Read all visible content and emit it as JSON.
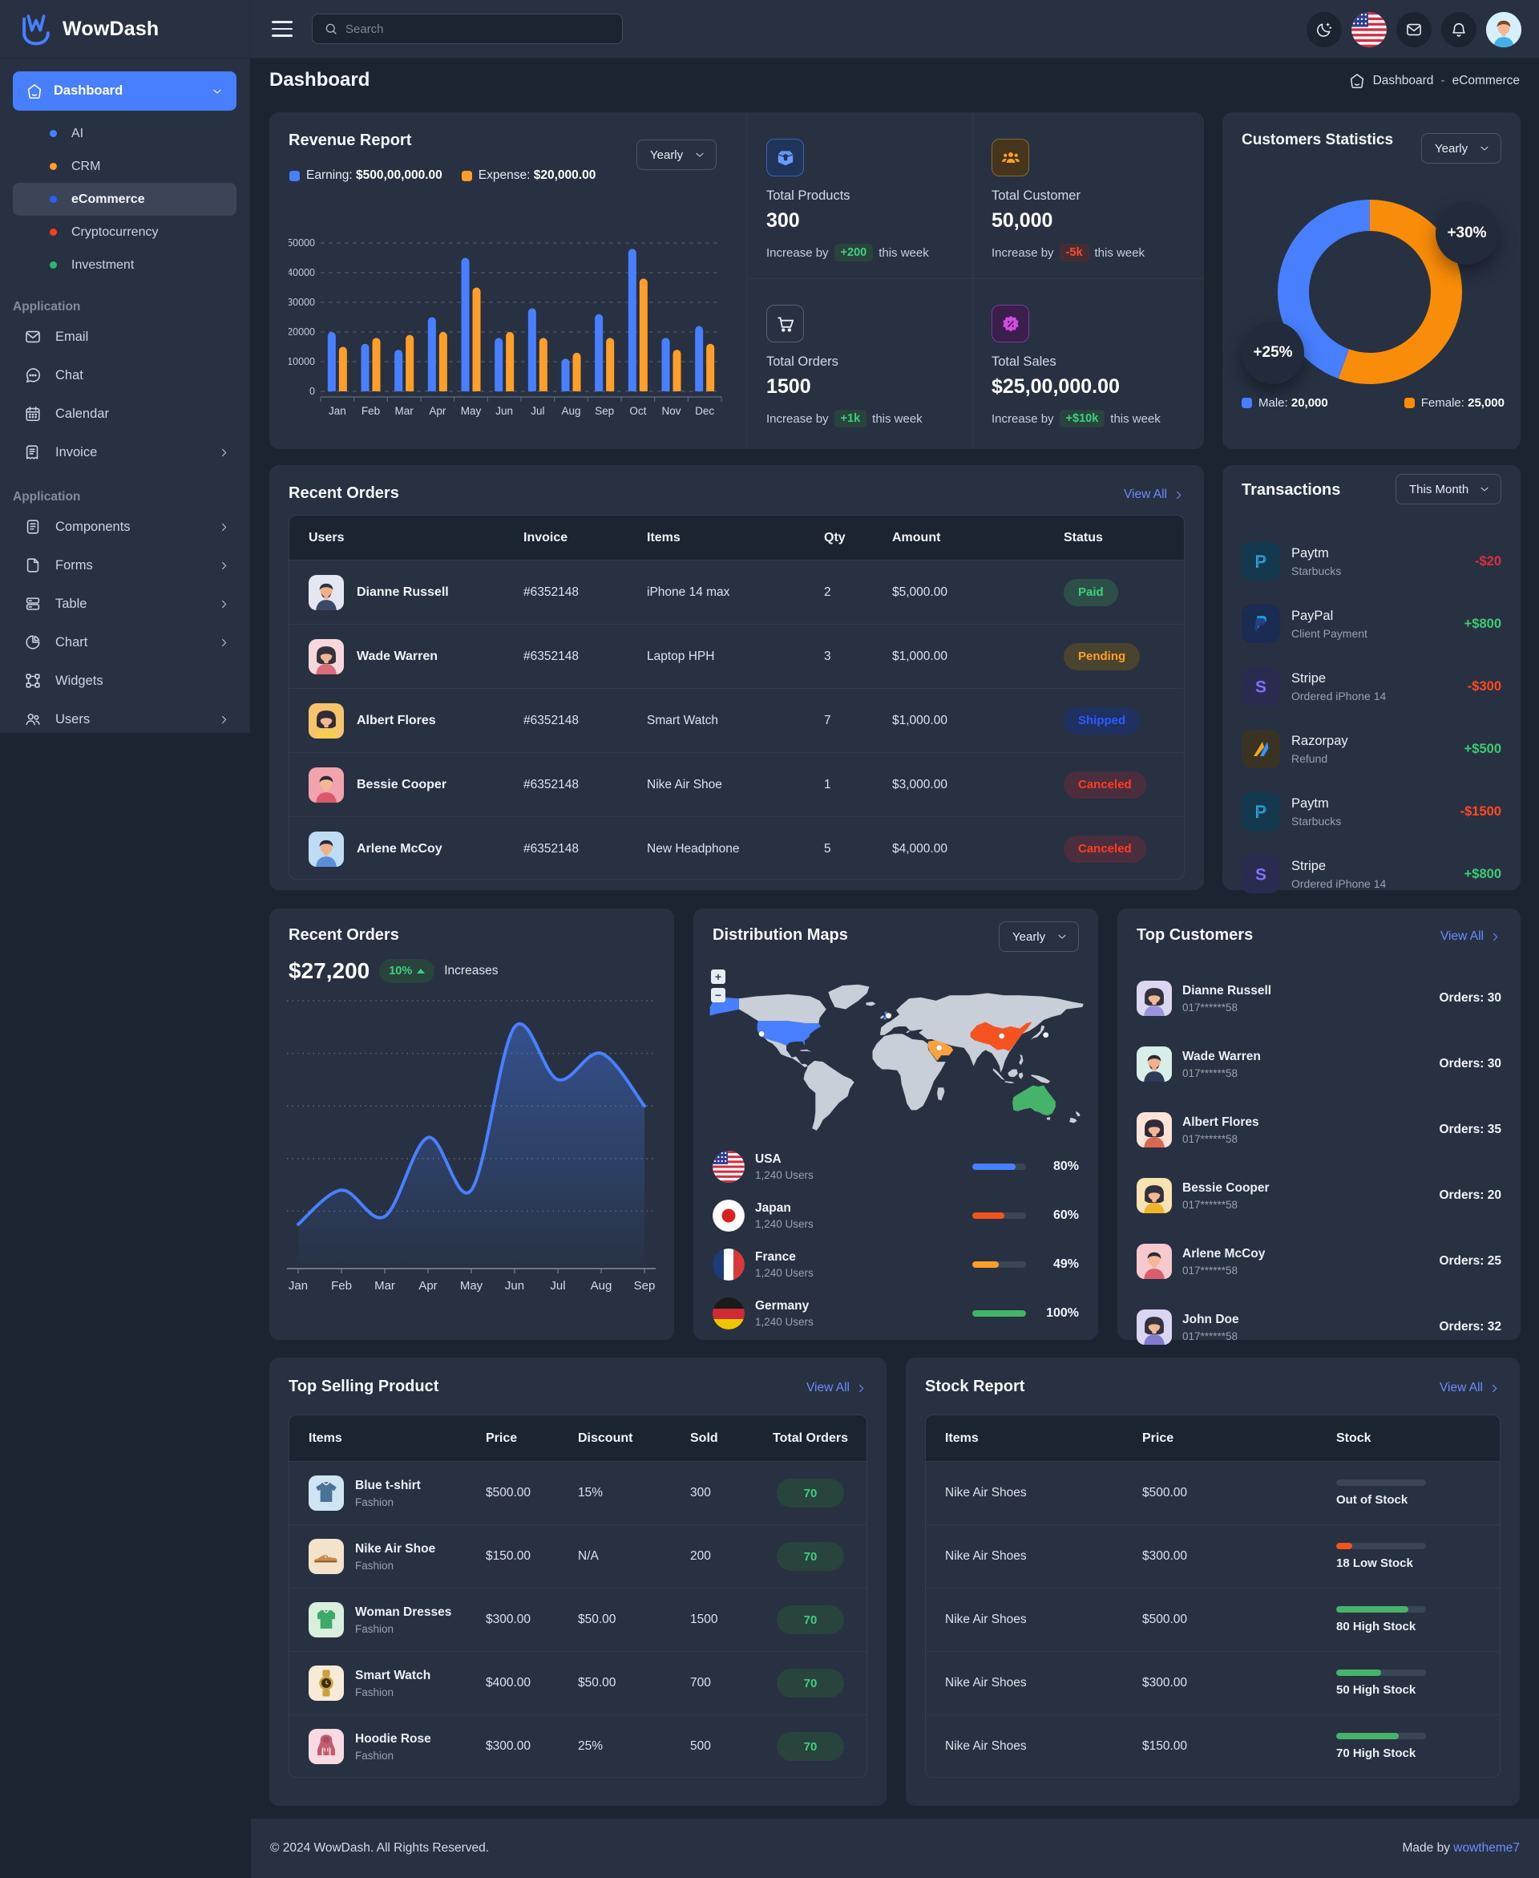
{
  "brand": {
    "name": "WowDash"
  },
  "topbar": {
    "search_placeholder": "Search",
    "icons": {
      "menu": "menu-icon",
      "search": "search-icon",
      "moon": "moon-icon",
      "flag": "us-flag-icon",
      "mail": "mail-icon",
      "bell": "bell-icon"
    },
    "user_avatar": {
      "bg": "#D6EFFC",
      "skin": "#F2B896",
      "hair": "#7A4526",
      "shirt": "#45AEE8",
      "style": "short"
    }
  },
  "sidebar": {
    "dashboard": {
      "label": "Dashboard",
      "icon": "home-icon"
    },
    "dashboard_children": [
      {
        "label": "AI",
        "dot": "#487FFF",
        "active": false
      },
      {
        "label": "CRM",
        "dot": "#FF9F29",
        "active": false
      },
      {
        "label": "eCommerce",
        "dot": "#2E5BFF",
        "active": true
      },
      {
        "label": "Cryptocurrency",
        "dot": "#FF3D1F",
        "active": false
      },
      {
        "label": "Investment",
        "dot": "#2BB673",
        "active": false
      }
    ],
    "section1": {
      "title": "Application",
      "items": [
        {
          "label": "Email",
          "icon": "mail-icon",
          "chevron": false
        },
        {
          "label": "Chat",
          "icon": "chat-icon",
          "chevron": false
        },
        {
          "label": "Calendar",
          "icon": "calendar-icon",
          "chevron": false
        },
        {
          "label": "Invoice",
          "icon": "invoice-icon",
          "chevron": true
        }
      ]
    },
    "section2": {
      "title": "Application",
      "items": [
        {
          "label": "Components",
          "icon": "components-icon",
          "chevron": true
        },
        {
          "label": "Forms",
          "icon": "forms-icon",
          "chevron": true
        },
        {
          "label": "Table",
          "icon": "table-icon",
          "chevron": true
        },
        {
          "label": "Chart",
          "icon": "chart-icon",
          "chevron": true
        },
        {
          "label": "Widgets",
          "icon": "widgets-icon",
          "chevron": false
        },
        {
          "label": "Users",
          "icon": "users-icon",
          "chevron": true
        }
      ]
    }
  },
  "page": {
    "title": "Dashboard",
    "breadcrumb": {
      "home_icon": "home-icon",
      "root": "Dashboard",
      "sep": "-",
      "current": "eCommerce"
    }
  },
  "revenue_report": {
    "title": "Revenue Report",
    "select_value": "Yearly",
    "legend": [
      {
        "label": "Earning:",
        "value": "$500,00,000.00",
        "color": "#487FFF"
      },
      {
        "label": "Expense:",
        "value": "$20,000.00",
        "color": "#FF9F29"
      }
    ],
    "chart_data": {
      "type": "bar",
      "categories": [
        "Jan",
        "Feb",
        "Mar",
        "Apr",
        "May",
        "Jun",
        "Jul",
        "Aug",
        "Sep",
        "Oct",
        "Nov",
        "Dec"
      ],
      "series": [
        {
          "name": "Earning",
          "color": "#487FFF",
          "values": [
            20000,
            16000,
            14000,
            25000,
            45000,
            18000,
            28000,
            11000,
            26000,
            48000,
            18000,
            22000
          ]
        },
        {
          "name": "Expense",
          "color": "#FF9F29",
          "values": [
            15000,
            18000,
            19000,
            20000,
            35000,
            20000,
            18000,
            13000,
            18000,
            38000,
            14000,
            16000
          ]
        }
      ],
      "ylim": [
        0,
        50000
      ],
      "yticks": [
        0,
        10000,
        20000,
        30000,
        40000,
        50000
      ],
      "grid": "dashed"
    }
  },
  "stats": [
    {
      "icon": "box-icon",
      "tile_bg": "#1F3458",
      "tile_border": "#3E62B9",
      "tile_fg": "#6B9BFF",
      "label": "Total Products",
      "value": "300",
      "inc_prefix": "Increase by",
      "badge": "+200",
      "badge_fg": "#3FD07F",
      "badge_bg": "#28443C",
      "inc_suffix": "this week"
    },
    {
      "icon": "group-icon",
      "tile_bg": "#46351D",
      "tile_border": "#8A6A2F",
      "tile_fg": "#FF9F29",
      "label": "Total Customer",
      "value": "50,000",
      "inc_prefix": "Increase by",
      "badge": "-5k",
      "badge_fg": "#FF4A2B",
      "badge_bg": "#462D33",
      "inc_suffix": "this week"
    },
    {
      "icon": "cart-icon",
      "tile_bg": "transparent",
      "tile_border": "#55617A",
      "tile_fg": "#E9EDF4",
      "label": "Total Orders",
      "value": "1500",
      "inc_prefix": "Increase by",
      "badge": "+1k",
      "badge_fg": "#3FD07F",
      "badge_bg": "#28443C",
      "inc_suffix": "this week"
    },
    {
      "icon": "discount-icon",
      "tile_bg": "#3A1F4C",
      "tile_border": "#7A3A96",
      "tile_fg": "#D44BE0",
      "label": "Total Sales",
      "value": "$25,00,000.00",
      "inc_prefix": "Increase by",
      "badge": "+$10k",
      "badge_fg": "#3FD07F",
      "badge_bg": "#28443C",
      "inc_suffix": "this week"
    }
  ],
  "customers_statistics": {
    "title": "Customers Statistics",
    "select_value": "Yearly",
    "bubble_top": "+30%",
    "bubble_bottom": "+25%",
    "legend": [
      {
        "label": "Male:",
        "value": "20,000",
        "color": "#487FFF"
      },
      {
        "label": "Female:",
        "value": "25,000",
        "color": "#F98C08"
      }
    ],
    "chart_data": {
      "type": "donut",
      "slices": [
        {
          "name": "Female",
          "value": 25000,
          "color": "#F98C08"
        },
        {
          "name": "Male",
          "value": 20000,
          "color": "#487FFF"
        }
      ],
      "start_angle_deg": 0,
      "direction": "clockwise"
    }
  },
  "recent_orders_table": {
    "title": "Recent Orders",
    "view_all": "View All",
    "columns": [
      "Users",
      "Invoice",
      "Items",
      "Qty",
      "Amount",
      "Status"
    ],
    "rows": [
      {
        "name": "Dianne Russell",
        "avatar": {
          "bg": "#E4E7F2",
          "skin": "#EFB08C",
          "hair": "#30333F",
          "shirt": "#3C4868",
          "style": "short",
          "beard": true
        },
        "invoice": "#6352148",
        "item": "iPhone 14 max",
        "qty": "2",
        "amount": "$5,000.00",
        "status": "Paid",
        "status_fg": "#3FD07F",
        "status_bg": "#2E4F47"
      },
      {
        "name": "Wade Warren",
        "avatar": {
          "bg": "#F6D7DC",
          "skin": "#F2B896",
          "hair": "#33323E",
          "shirt": "#DA6C7C",
          "style": "long",
          "beard": false
        },
        "invoice": "#6352148",
        "item": "Laptop HPH",
        "qty": "3",
        "amount": "$1,000.00",
        "status": "Pending",
        "status_fg": "#FF9F29",
        "status_bg": "#4A432E"
      },
      {
        "name": "Albert Flores",
        "avatar": {
          "bg": "#F7C46C",
          "skin": "#F2B896",
          "hair": "#2F2B38",
          "shirt": "#F2CE53",
          "style": "long",
          "beard": false
        },
        "invoice": "#6352148",
        "item": "Smart Watch",
        "qty": "7",
        "amount": "$1,000.00",
        "status": "Shipped",
        "status_fg": "#2E5BFF",
        "status_bg": "#1E3161"
      },
      {
        "name": "Bessie Cooper",
        "avatar": {
          "bg": "#F2A3AE",
          "skin": "#F2B896",
          "hair": "#2E2A33",
          "shirt": "#D9596B",
          "style": "short",
          "beard": false
        },
        "invoice": "#6352148",
        "item": "Nike Air Shoe",
        "qty": "1",
        "amount": "$3,000.00",
        "status": "Canceled",
        "status_fg": "#FF3D1F",
        "status_bg": "#4A2E3E"
      },
      {
        "name": "Arlene McCoy",
        "avatar": {
          "bg": "#BFDCF5",
          "skin": "#EFB08C",
          "hair": "#2E2A33",
          "shirt": "#5B8DD9",
          "style": "short",
          "beard": false
        },
        "invoice": "#6352148",
        "item": "New Headphone",
        "qty": "5",
        "amount": "$4,000.00",
        "status": "Canceled",
        "status_fg": "#FF3D1F",
        "status_bg": "#4A2E3E"
      }
    ]
  },
  "transactions": {
    "title": "Transactions",
    "select_value": "This Month",
    "items": [
      {
        "logo": "paytm",
        "tile_bg": "#14384D",
        "name": "Paytm",
        "sub": "Starbucks",
        "amount": "-$20",
        "amount_color": "#DC2F3F"
      },
      {
        "logo": "paypal",
        "tile_bg": "#1B2C52",
        "name": "PayPal",
        "sub": "Client Payment",
        "amount": "+$800",
        "amount_color": "#3FCB72"
      },
      {
        "logo": "stripe",
        "tile_bg": "#2B2A4F",
        "name": "Stripe",
        "sub": "Ordered iPhone 14",
        "amount": "-$300",
        "amount_color": "#FF4A1D"
      },
      {
        "logo": "razorpay",
        "tile_bg": "#3A3323",
        "name": "Razorpay",
        "sub": "Refund",
        "amount": "+$500",
        "amount_color": "#3FCB72"
      },
      {
        "logo": "paytm",
        "tile_bg": "#14384D",
        "name": "Paytm",
        "sub": "Starbucks",
        "amount": "-$1500",
        "amount_color": "#FF4A1D"
      },
      {
        "logo": "stripe",
        "tile_bg": "#2B2A4F",
        "name": "Stripe",
        "sub": "Ordered iPhone 14",
        "amount": "+$800",
        "amount_color": "#3FCB72"
      }
    ]
  },
  "recent_orders_chart": {
    "title": "Recent Orders",
    "value": "$27,200",
    "badge": "10%",
    "badge_fg": "#3FD07F",
    "badge_bg": "#28443C",
    "note": "Increases",
    "chart_data": {
      "type": "area",
      "x": [
        "Jan",
        "Feb",
        "Mar",
        "Apr",
        "May",
        "Jun",
        "Jul",
        "Aug",
        "Sep"
      ],
      "values": [
        15,
        28,
        18,
        48,
        28,
        90,
        70,
        80,
        60
      ],
      "ylim": [
        0,
        100
      ],
      "gridlines": [
        20,
        40,
        60,
        80,
        100
      ],
      "line_color": "#4880FF",
      "fill_from": "rgba(72,128,255,0.40)",
      "fill_to": "rgba(72,128,255,0.02)"
    }
  },
  "distribution_maps": {
    "title": "Distribution Maps",
    "select_value": "Yearly",
    "zoom_in": "+",
    "zoom_out": "−",
    "map_colors": {
      "land": "#C9CFD9",
      "usa": "#487FFF",
      "uk": "#487FFF",
      "china": "#F4521E",
      "saudi": "#F9A33C",
      "australia": "#45B369"
    },
    "countries": [
      {
        "flag": "usa",
        "name": "USA",
        "users": "1,240 Users",
        "percent": 80,
        "percent_label": "80%",
        "color": "#487FFF"
      },
      {
        "flag": "japan",
        "name": "Japan",
        "users": "1,240 Users",
        "percent": 60,
        "percent_label": "60%",
        "color": "#F4521E"
      },
      {
        "flag": "france",
        "name": "France",
        "users": "1,240 Users",
        "percent": 49,
        "percent_label": "49%",
        "color": "#FF9F29"
      },
      {
        "flag": "germany",
        "name": "Germany",
        "users": "1,240 Users",
        "percent": 100,
        "percent_label": "100%",
        "color": "#45B369"
      }
    ]
  },
  "top_customers": {
    "title": "Top Customers",
    "view_all": "View All",
    "rows": [
      {
        "avatar": {
          "bg": "#DCD7F0",
          "skin": "#F2B896",
          "hair": "#33323E",
          "shirt": "#9B93DB",
          "style": "long",
          "beard": false
        },
        "name": "Dianne Russell",
        "phone": "017******58",
        "orders": "Orders: 30"
      },
      {
        "avatar": {
          "bg": "#D8EFE9",
          "skin": "#EFB08C",
          "hair": "#2E2A33",
          "shirt": "#2F3A56",
          "style": "short",
          "beard": true
        },
        "name": "Wade Warren",
        "phone": "017******58",
        "orders": "Orders: 30"
      },
      {
        "avatar": {
          "bg": "#FBE3D7",
          "skin": "#F2B896",
          "hair": "#2F2B38",
          "shirt": "#D96850",
          "style": "long",
          "beard": false
        },
        "name": "Albert Flores",
        "phone": "017******58",
        "orders": "Orders: 35"
      },
      {
        "avatar": {
          "bg": "#F7E3B2",
          "skin": "#F2B896",
          "hair": "#33303C",
          "shirt": "#F0B429",
          "style": "long",
          "beard": false
        },
        "name": "Bessie Cooper",
        "phone": "017******58",
        "orders": "Orders: 20"
      },
      {
        "avatar": {
          "bg": "#F6C9CE",
          "skin": "#F2B896",
          "hair": "#2E2A33",
          "shirt": "#D95F6E",
          "style": "short",
          "beard": false
        },
        "name": "Arlene McCoy",
        "phone": "017******58",
        "orders": "Orders: 25"
      },
      {
        "avatar": {
          "bg": "#D9D5F2",
          "skin": "#F2B896",
          "hair": "#33323E",
          "shirt": "#7F7BD0",
          "style": "long",
          "beard": false
        },
        "name": "John Doe",
        "phone": "017******58",
        "orders": "Orders: 32"
      }
    ]
  },
  "top_selling": {
    "title": "Top Selling Product",
    "view_all": "View All",
    "columns": [
      "Items",
      "Price",
      "Discount",
      "Sold",
      "Total Orders"
    ],
    "rows": [
      {
        "thumb": {
          "type": "tshirt",
          "bg": "#CFE5F4",
          "color": "#4A7296"
        },
        "name": "Blue t-shirt",
        "category": "Fashion",
        "price": "$500.00",
        "discount": "15%",
        "sold": "300",
        "orders": "70",
        "orders_fg": "#3FD07F",
        "orders_bg": "#28443C"
      },
      {
        "thumb": {
          "type": "shoe",
          "bg": "#F3E3CB",
          "color": "#C98A4B"
        },
        "name": "Nike Air Shoe",
        "category": "Fashion",
        "price": "$150.00",
        "discount": "N/A",
        "sold": "200",
        "orders": "70",
        "orders_fg": "#3FD07F",
        "orders_bg": "#28443C"
      },
      {
        "thumb": {
          "type": "sweater",
          "bg": "#D7EFDC",
          "color": "#3FA968"
        },
        "name": "Woman Dresses",
        "category": "Fashion",
        "price": "$300.00",
        "discount": "$50.00",
        "sold": "1500",
        "orders": "70",
        "orders_fg": "#3FD07F",
        "orders_bg": "#28443C"
      },
      {
        "thumb": {
          "type": "watch",
          "bg": "#F7EBD7",
          "color": "#C9A23F"
        },
        "name": "Smart Watch",
        "category": "Fashion",
        "price": "$400.00",
        "discount": "$50.00",
        "sold": "700",
        "orders": "70",
        "orders_fg": "#3FD07F",
        "orders_bg": "#28443C"
      },
      {
        "thumb": {
          "type": "hoodie",
          "bg": "#F6DCE2",
          "color": "#C25B6E"
        },
        "name": "Hoodie Rose",
        "category": "Fashion",
        "price": "$300.00",
        "discount": "25%",
        "sold": "500",
        "orders": "70",
        "orders_fg": "#3FD07F",
        "orders_bg": "#28443C"
      }
    ]
  },
  "stock_report": {
    "title": "Stock Report",
    "view_all": "View All",
    "columns": [
      "Items",
      "Price",
      "Stock"
    ],
    "rows": [
      {
        "name": "Nike Air Shoes",
        "price": "$500.00",
        "percent": 0,
        "color": "#45B369",
        "label": "Out of Stock"
      },
      {
        "name": "Nike Air Shoes",
        "price": "$300.00",
        "percent": 18,
        "color": "#F4521E",
        "label": "18 Low Stock"
      },
      {
        "name": "Nike Air Shoes",
        "price": "$500.00",
        "percent": 80,
        "color": "#45B369",
        "label": "80 High Stock"
      },
      {
        "name": "Nike Air Shoes",
        "price": "$300.00",
        "percent": 50,
        "color": "#45B369",
        "label": "50 High Stock"
      },
      {
        "name": "Nike Air Shoes",
        "price": "$150.00",
        "percent": 70,
        "color": "#45B369",
        "label": "70 High Stock"
      }
    ]
  },
  "footer": {
    "copyright": "© 2024 WowDash. All Rights Reserved.",
    "made_by": "Made by ",
    "author": "wowtheme7"
  }
}
